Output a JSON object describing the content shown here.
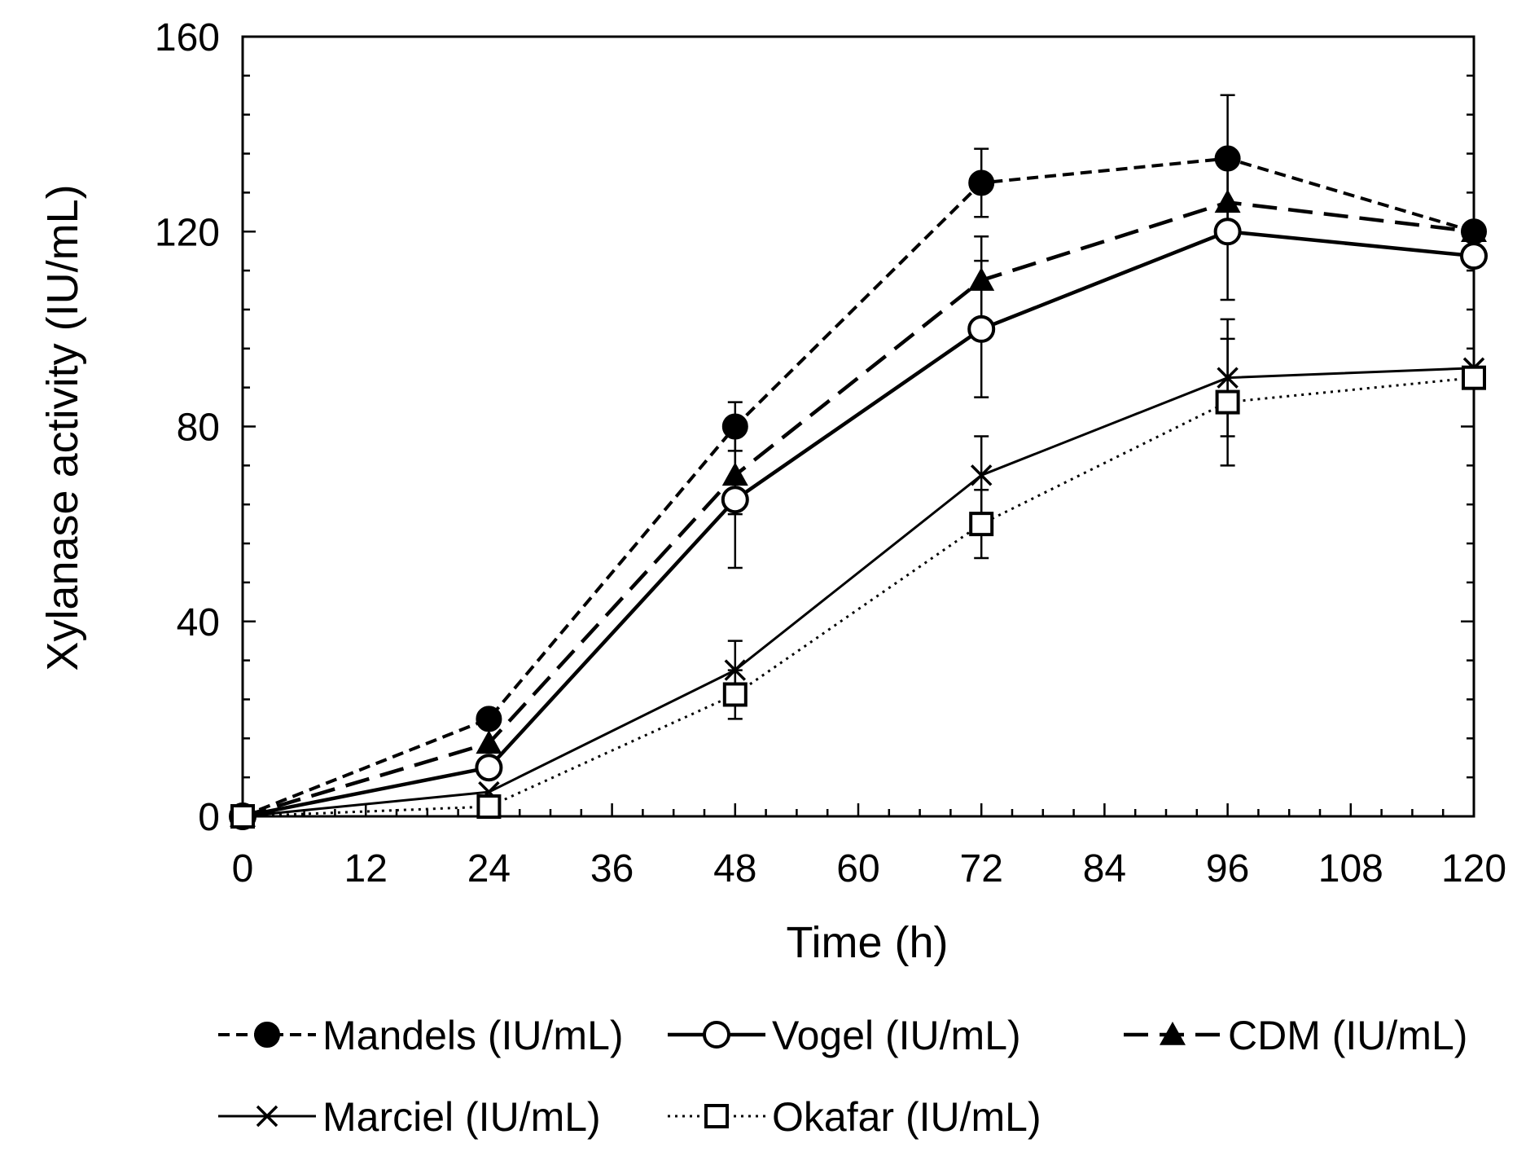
{
  "chart_data": {
    "type": "line",
    "xlabel": "Time (h)",
    "ylabel": "Xylanase activity (IU/mL)",
    "xlim": [
      0,
      120
    ],
    "ylim": [
      0,
      160
    ],
    "xticks": [
      0,
      12,
      24,
      36,
      48,
      60,
      72,
      84,
      96,
      108,
      120
    ],
    "yticks": [
      0,
      40,
      80,
      120,
      160
    ],
    "x": [
      0,
      24,
      48,
      72,
      96,
      120
    ],
    "grid": false,
    "legend_position": "bottom",
    "series": [
      {
        "name": "Mandels (IU/mL)",
        "marker": "filled-circle",
        "line": "short-dash",
        "values": [
          0,
          20,
          80,
          130,
          135,
          120
        ],
        "errors": [
          0,
          0,
          5,
          7,
          13,
          0
        ]
      },
      {
        "name": "Vogel (IU/mL)",
        "marker": "open-circle",
        "line": "solid-thick",
        "values": [
          0,
          10,
          65,
          100,
          120,
          115
        ],
        "errors": [
          0,
          0,
          14,
          14,
          14,
          0
        ]
      },
      {
        "name": "CDM (IU/mL)",
        "marker": "filled-triangle",
        "line": "long-dash",
        "values": [
          0,
          15,
          70,
          110,
          126,
          120
        ],
        "errors": [
          0,
          0,
          8,
          9,
          0,
          0
        ]
      },
      {
        "name": "Marciel (IU/mL)",
        "marker": "x",
        "line": "solid-thin",
        "values": [
          0,
          5,
          30,
          70,
          90,
          92
        ],
        "errors": [
          0,
          0,
          6,
          8,
          12,
          0
        ]
      },
      {
        "name": "Okafar (IU/mL)",
        "marker": "open-square",
        "line": "dotted",
        "values": [
          0,
          2,
          25,
          60,
          85,
          90
        ],
        "errors": [
          0,
          0,
          5,
          7,
          13,
          2
        ]
      }
    ]
  }
}
